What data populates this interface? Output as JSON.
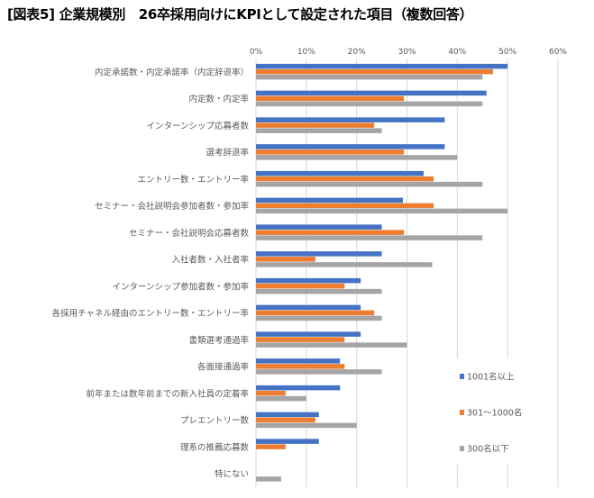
{
  "title": "[図表5] 企業規模別　26卒採用向けにKPIとして設定された項目（複数回答）",
  "chart_data": {
    "type": "bar",
    "orientation": "horizontal",
    "title": "[図表5] 企業規模別　26卒採用向けにKPIとして設定された項目（複数回答）",
    "xlabel": "",
    "ylabel": "",
    "xlim": [
      0,
      60
    ],
    "x_ticks": [
      "0%",
      "10%",
      "20%",
      "30%",
      "40%",
      "50%",
      "60%"
    ],
    "grid": "vertical",
    "legend_position": "right",
    "categories": [
      "内定承諾数・内定承諾率（内定辞退率）",
      "内定数・内定率",
      "インターンシップ応募者数",
      "選考辞退率",
      "エントリー数・エントリー率",
      "セミナー・会社説明会参加者数・参加率",
      "セミナー・会社説明会応募者数",
      "入社者数・入社者率",
      "インターンシップ参加者数・参加率",
      "各採用チャネル経由のエントリー数・エントリー率",
      "書類選考通過率",
      "各面接通過率",
      "前年または数年前までの新入社員の定着率",
      "プレエントリー数",
      "理系の推薦応募数",
      "特にない"
    ],
    "series": [
      {
        "name": "1001名以上",
        "color": "#4472C4",
        "values": [
          50.0,
          45.8,
          37.5,
          37.5,
          33.3,
          29.2,
          25.0,
          25.0,
          20.8,
          20.8,
          20.8,
          16.7,
          16.7,
          12.5,
          12.5,
          0
        ]
      },
      {
        "name": "301～1000名",
        "color": "#ED7D31",
        "values": [
          47.1,
          29.4,
          23.5,
          29.4,
          35.3,
          35.3,
          29.4,
          11.8,
          17.6,
          23.5,
          17.6,
          17.6,
          5.9,
          11.8,
          5.9,
          0
        ]
      },
      {
        "name": "300名以下",
        "color": "#A5A5A5",
        "values": [
          45.0,
          45.0,
          25.0,
          40.0,
          45.0,
          50.0,
          45.0,
          35.0,
          25.0,
          25.0,
          30.0,
          25.0,
          10.0,
          20.0,
          0,
          5.0
        ]
      }
    ]
  }
}
